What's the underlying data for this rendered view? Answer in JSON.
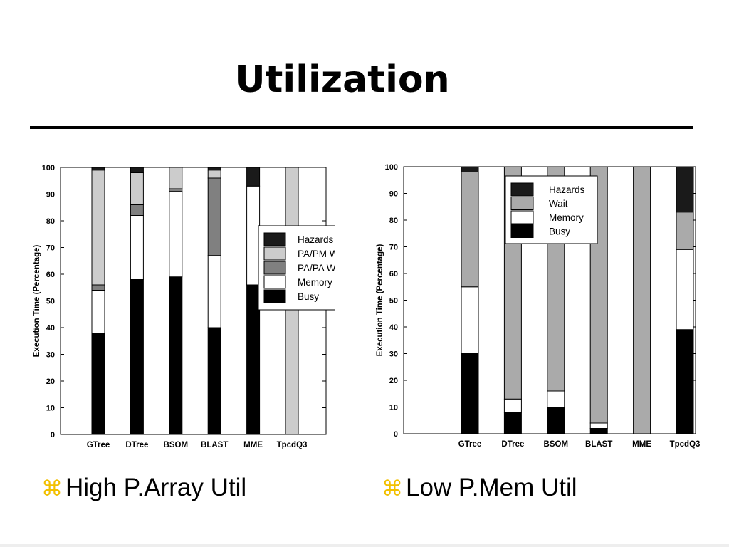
{
  "slide": {
    "title": "Utilization",
    "bullets": [
      {
        "glyph": "⌘",
        "text": "High P.Array Util"
      },
      {
        "glyph": "⌘",
        "text": "Low P.Mem Util"
      }
    ]
  },
  "chart_data": [
    {
      "type": "bar",
      "stacked": true,
      "ylabel": "Execution Time (Percentage)",
      "ylim": [
        0,
        100
      ],
      "yticks": [
        0,
        10,
        20,
        30,
        40,
        50,
        60,
        70,
        80,
        90,
        100
      ],
      "grid": false,
      "legend_position": "right",
      "categories": [
        "GTree",
        "DTree",
        "BSOM",
        "BLAST",
        "MME",
        "TpcdQ3"
      ],
      "series": [
        {
          "name": "Busy",
          "color": "#000000",
          "values": [
            38,
            58,
            59,
            40,
            56,
            0
          ]
        },
        {
          "name": "Memory",
          "color": "#ffffff",
          "values": [
            16,
            24,
            32,
            27,
            37,
            0
          ]
        },
        {
          "name": "PA/PA Wait",
          "color": "#808080",
          "values": [
            2,
            4,
            1,
            29,
            0,
            0
          ]
        },
        {
          "name": "PA/PM Wait",
          "color": "#cccccc",
          "values": [
            43,
            12,
            8,
            3,
            0,
            100
          ]
        },
        {
          "name": "Hazards",
          "color": "#1a1a1a",
          "values": [
            1,
            2,
            0,
            1,
            7,
            0
          ]
        }
      ],
      "legend_order": [
        "Hazards",
        "PA/PM Wait",
        "PA/PA Wait",
        "Memory",
        "Busy"
      ]
    },
    {
      "type": "bar",
      "stacked": true,
      "ylabel": "Execution Time (Percentage)",
      "ylim": [
        0,
        100
      ],
      "yticks": [
        0,
        10,
        20,
        30,
        40,
        50,
        60,
        70,
        80,
        90,
        100
      ],
      "grid": false,
      "legend_position": "top-right",
      "categories": [
        "GTree",
        "DTree",
        "BSOM",
        "BLAST",
        "MME",
        "TpcdQ3"
      ],
      "series": [
        {
          "name": "Busy",
          "color": "#000000",
          "values": [
            30,
            8,
            10,
            2,
            0,
            39
          ]
        },
        {
          "name": "Memory",
          "color": "#ffffff",
          "values": [
            25,
            5,
            6,
            2,
            0,
            30
          ]
        },
        {
          "name": "Wait",
          "color": "#aaaaaa",
          "values": [
            43,
            87,
            84,
            96,
            100,
            14
          ]
        },
        {
          "name": "Hazards",
          "color": "#1a1a1a",
          "values": [
            2,
            0,
            0,
            0,
            0,
            17
          ]
        }
      ],
      "legend_order": [
        "Hazards",
        "Wait",
        "Memory",
        "Busy"
      ]
    }
  ]
}
